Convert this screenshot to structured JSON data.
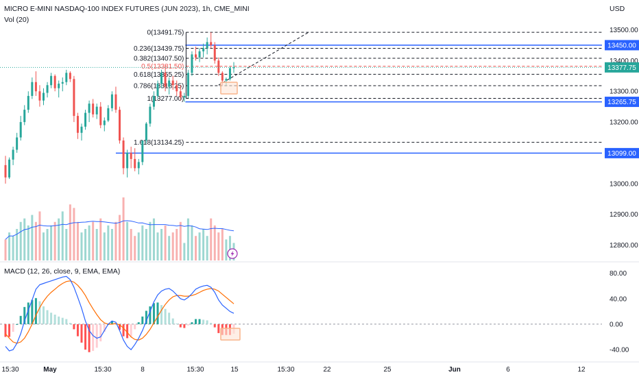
{
  "header": {
    "title": "MICRO E-MINI NASDAQ-100 INDEX FUTURES (JUN 2023), 1h, CME_MINI",
    "volume_label": "Vol (20)",
    "macd_label": "MACD (12, 26, close, 9, EMA, EMA)",
    "currency": "USD"
  },
  "colors": {
    "up": "#26a69a",
    "down": "#ef5350",
    "level_line": "#2962ff",
    "price_tag": "#26a69a",
    "macd_line": "#2962ff",
    "signal_line": "#ff6d00",
    "volume_ma": "#2962ff",
    "fib_05": "#ef5350",
    "annotation_box": "#f8b38a"
  },
  "icons": {
    "volume_marker": "lightning-icon"
  },
  "chart_data": [
    {
      "type": "candlestick",
      "title": "MICRO E-MINI NASDAQ-100 INDEX FUTURES (JUN 2023), 1h, CME_MINI",
      "ylim": [
        12750,
        13530
      ],
      "y_ticks": [
        13500,
        13400,
        13300,
        13200,
        13100,
        13000,
        12900,
        12800
      ],
      "y_tick_labels": [
        "13500.00",
        "13400.00",
        "13300.00",
        "13200.00",
        "13100.00",
        "13000.00",
        "12900.00",
        "12800.00"
      ],
      "x_tick_labels": [
        "15:30",
        "May",
        "15:30",
        "8",
        "15:30",
        "15",
        "15:30",
        "22",
        "25",
        "Jun",
        "6",
        "12"
      ],
      "x_label_bold": [
        "May",
        "Jun"
      ],
      "grid": false,
      "ohlc": [
        [
          13060,
          13090,
          13000,
          13020
        ],
        [
          13020,
          13085,
          13015,
          13078
        ],
        [
          13078,
          13120,
          13060,
          13110
        ],
        [
          13110,
          13165,
          13100,
          13150
        ],
        [
          13150,
          13220,
          13140,
          13200
        ],
        [
          13200,
          13255,
          13190,
          13240
        ],
        [
          13240,
          13300,
          13230,
          13285
        ],
        [
          13285,
          13345,
          13275,
          13330
        ],
        [
          13330,
          13365,
          13285,
          13300
        ],
        [
          13300,
          13320,
          13250,
          13270
        ],
        [
          13270,
          13310,
          13255,
          13295
        ],
        [
          13295,
          13330,
          13280,
          13320
        ],
        [
          13320,
          13360,
          13310,
          13350
        ],
        [
          13350,
          13355,
          13300,
          13310
        ],
        [
          13310,
          13335,
          13280,
          13325
        ],
        [
          13325,
          13345,
          13300,
          13330
        ],
        [
          13330,
          13370,
          13320,
          13360
        ],
        [
          13360,
          13365,
          13330,
          13340
        ],
        [
          13340,
          13350,
          13200,
          13220
        ],
        [
          13220,
          13230,
          13145,
          13165
        ],
        [
          13165,
          13195,
          13140,
          13185
        ],
        [
          13185,
          13240,
          13175,
          13230
        ],
        [
          13230,
          13270,
          13200,
          13260
        ],
        [
          13260,
          13275,
          13215,
          13225
        ],
        [
          13225,
          13260,
          13210,
          13250
        ],
        [
          13250,
          13265,
          13180,
          13190
        ],
        [
          13190,
          13215,
          13170,
          13205
        ],
        [
          13205,
          13255,
          13200,
          13245
        ],
        [
          13245,
          13300,
          13235,
          13290
        ],
        [
          13290,
          13315,
          13230,
          13240
        ],
        [
          13240,
          13250,
          13130,
          13140
        ],
        [
          13140,
          13150,
          13030,
          13050
        ],
        [
          13050,
          13110,
          13020,
          13100
        ],
        [
          13100,
          13120,
          13050,
          13080
        ],
        [
          13080,
          13115,
          13040,
          13050
        ],
        [
          13050,
          13080,
          13030,
          13070
        ],
        [
          13070,
          13140,
          13060,
          13140
        ],
        [
          13140,
          13200,
          13130,
          13195
        ],
        [
          13195,
          13260,
          13185,
          13250
        ],
        [
          13250,
          13300,
          13240,
          13285
        ],
        [
          13285,
          13335,
          13275,
          13325
        ],
        [
          13325,
          13370,
          13310,
          13360
        ],
        [
          13360,
          13385,
          13300,
          13315
        ],
        [
          13315,
          13345,
          13290,
          13335
        ],
        [
          13335,
          13350,
          13305,
          13320
        ],
        [
          13320,
          13335,
          13285,
          13300
        ],
        [
          13300,
          13320,
          13270,
          13280
        ],
        [
          13280,
          13295,
          13266,
          13285
        ],
        [
          13285,
          13370,
          13278,
          13360
        ],
        [
          13360,
          13430,
          13350,
          13420
        ],
        [
          13420,
          13445,
          13400,
          13410
        ],
        [
          13410,
          13440,
          13395,
          13430
        ],
        [
          13430,
          13455,
          13410,
          13440
        ],
        [
          13440,
          13475,
          13420,
          13460
        ],
        [
          13460,
          13492,
          13440,
          13450
        ],
        [
          13450,
          13460,
          13390,
          13400
        ],
        [
          13400,
          13410,
          13350,
          13360
        ],
        [
          13360,
          13365,
          13320,
          13335
        ],
        [
          13335,
          13345,
          13318,
          13340
        ],
        [
          13340,
          13380,
          13335,
          13375
        ],
        [
          13375,
          13395,
          13360,
          13378
        ]
      ],
      "price_tags": [
        {
          "value": 13450.0,
          "label": "13450.00",
          "color": "#2962ff"
        },
        {
          "value": 13377.75,
          "label": "13377.75",
          "color": "#26a69a"
        },
        {
          "value": 13265.75,
          "label": "13265.75",
          "color": "#2962ff"
        },
        {
          "value": 13099.0,
          "label": "13099.00",
          "color": "#2962ff"
        }
      ],
      "fibonacci": {
        "levels": [
          {
            "label": "0(13491.75)",
            "value": 13491.75
          },
          {
            "label": "0.236(13439.75)",
            "value": 13439.75
          },
          {
            "label": "0.382(13407.50)",
            "value": 13407.5
          },
          {
            "label": "0.5(13381.50)",
            "value": 13381.5
          },
          {
            "label": "0.618(13355.25)",
            "value": 13355.25
          },
          {
            "label": "0.786(13318.25)",
            "value": 13318.25
          },
          {
            "label": "1(13277.00)",
            "value": 13277.0
          },
          {
            "label": "1.618(13134.25)",
            "value": 13134.25
          }
        ]
      }
    },
    {
      "type": "bar",
      "title": "Vol (20)",
      "values": [
        30,
        40,
        35,
        45,
        55,
        60,
        50,
        65,
        55,
        70,
        40,
        45,
        50,
        55,
        60,
        70,
        45,
        80,
        75,
        55,
        40,
        45,
        50,
        55,
        45,
        60,
        40,
        50,
        45,
        55,
        65,
        90,
        55,
        45,
        35,
        40,
        50,
        45,
        55,
        60,
        40,
        45,
        50,
        35,
        40,
        45,
        55,
        25,
        60,
        50,
        35,
        40,
        45,
        35,
        60,
        50,
        40,
        45,
        30,
        35,
        25
      ],
      "moving_average_period": 20
    },
    {
      "type": "line",
      "title": "MACD (12, 26, close, 9, EMA, EMA)",
      "ylim": [
        -55,
        85
      ],
      "y_ticks": [
        80,
        40,
        0,
        -40
      ],
      "y_tick_labels": [
        "80.00",
        "40.00",
        "0.00",
        "-40.00"
      ],
      "macd": [
        -35,
        -42,
        -40,
        -30,
        -15,
        5,
        22,
        38,
        55,
        62,
        64,
        66,
        68,
        70,
        72,
        74,
        75,
        70,
        58,
        42,
        25,
        5,
        -10,
        -18,
        -22,
        -20,
        -10,
        0,
        5,
        3,
        -10,
        -25,
        -35,
        -40,
        -32,
        -22,
        -10,
        5,
        20,
        35,
        46,
        52,
        55,
        56,
        52,
        46,
        40,
        38,
        42,
        48,
        55,
        58,
        60,
        61,
        58,
        50,
        38,
        30,
        25,
        20,
        17
      ],
      "signal": [
        -15,
        -22,
        -28,
        -30,
        -28,
        -22,
        -12,
        0,
        14,
        26,
        36,
        44,
        50,
        55,
        60,
        64,
        67,
        68,
        66,
        61,
        54,
        45,
        34,
        24,
        15,
        7,
        2,
        0,
        0,
        1,
        -1,
        -6,
        -13,
        -20,
        -24,
        -25,
        -22,
        -16,
        -8,
        2,
        12,
        22,
        31,
        38,
        43,
        45,
        45,
        44,
        44,
        45,
        47,
        50,
        53,
        55,
        56,
        55,
        52,
        47,
        42,
        37,
        32
      ]
    }
  ]
}
